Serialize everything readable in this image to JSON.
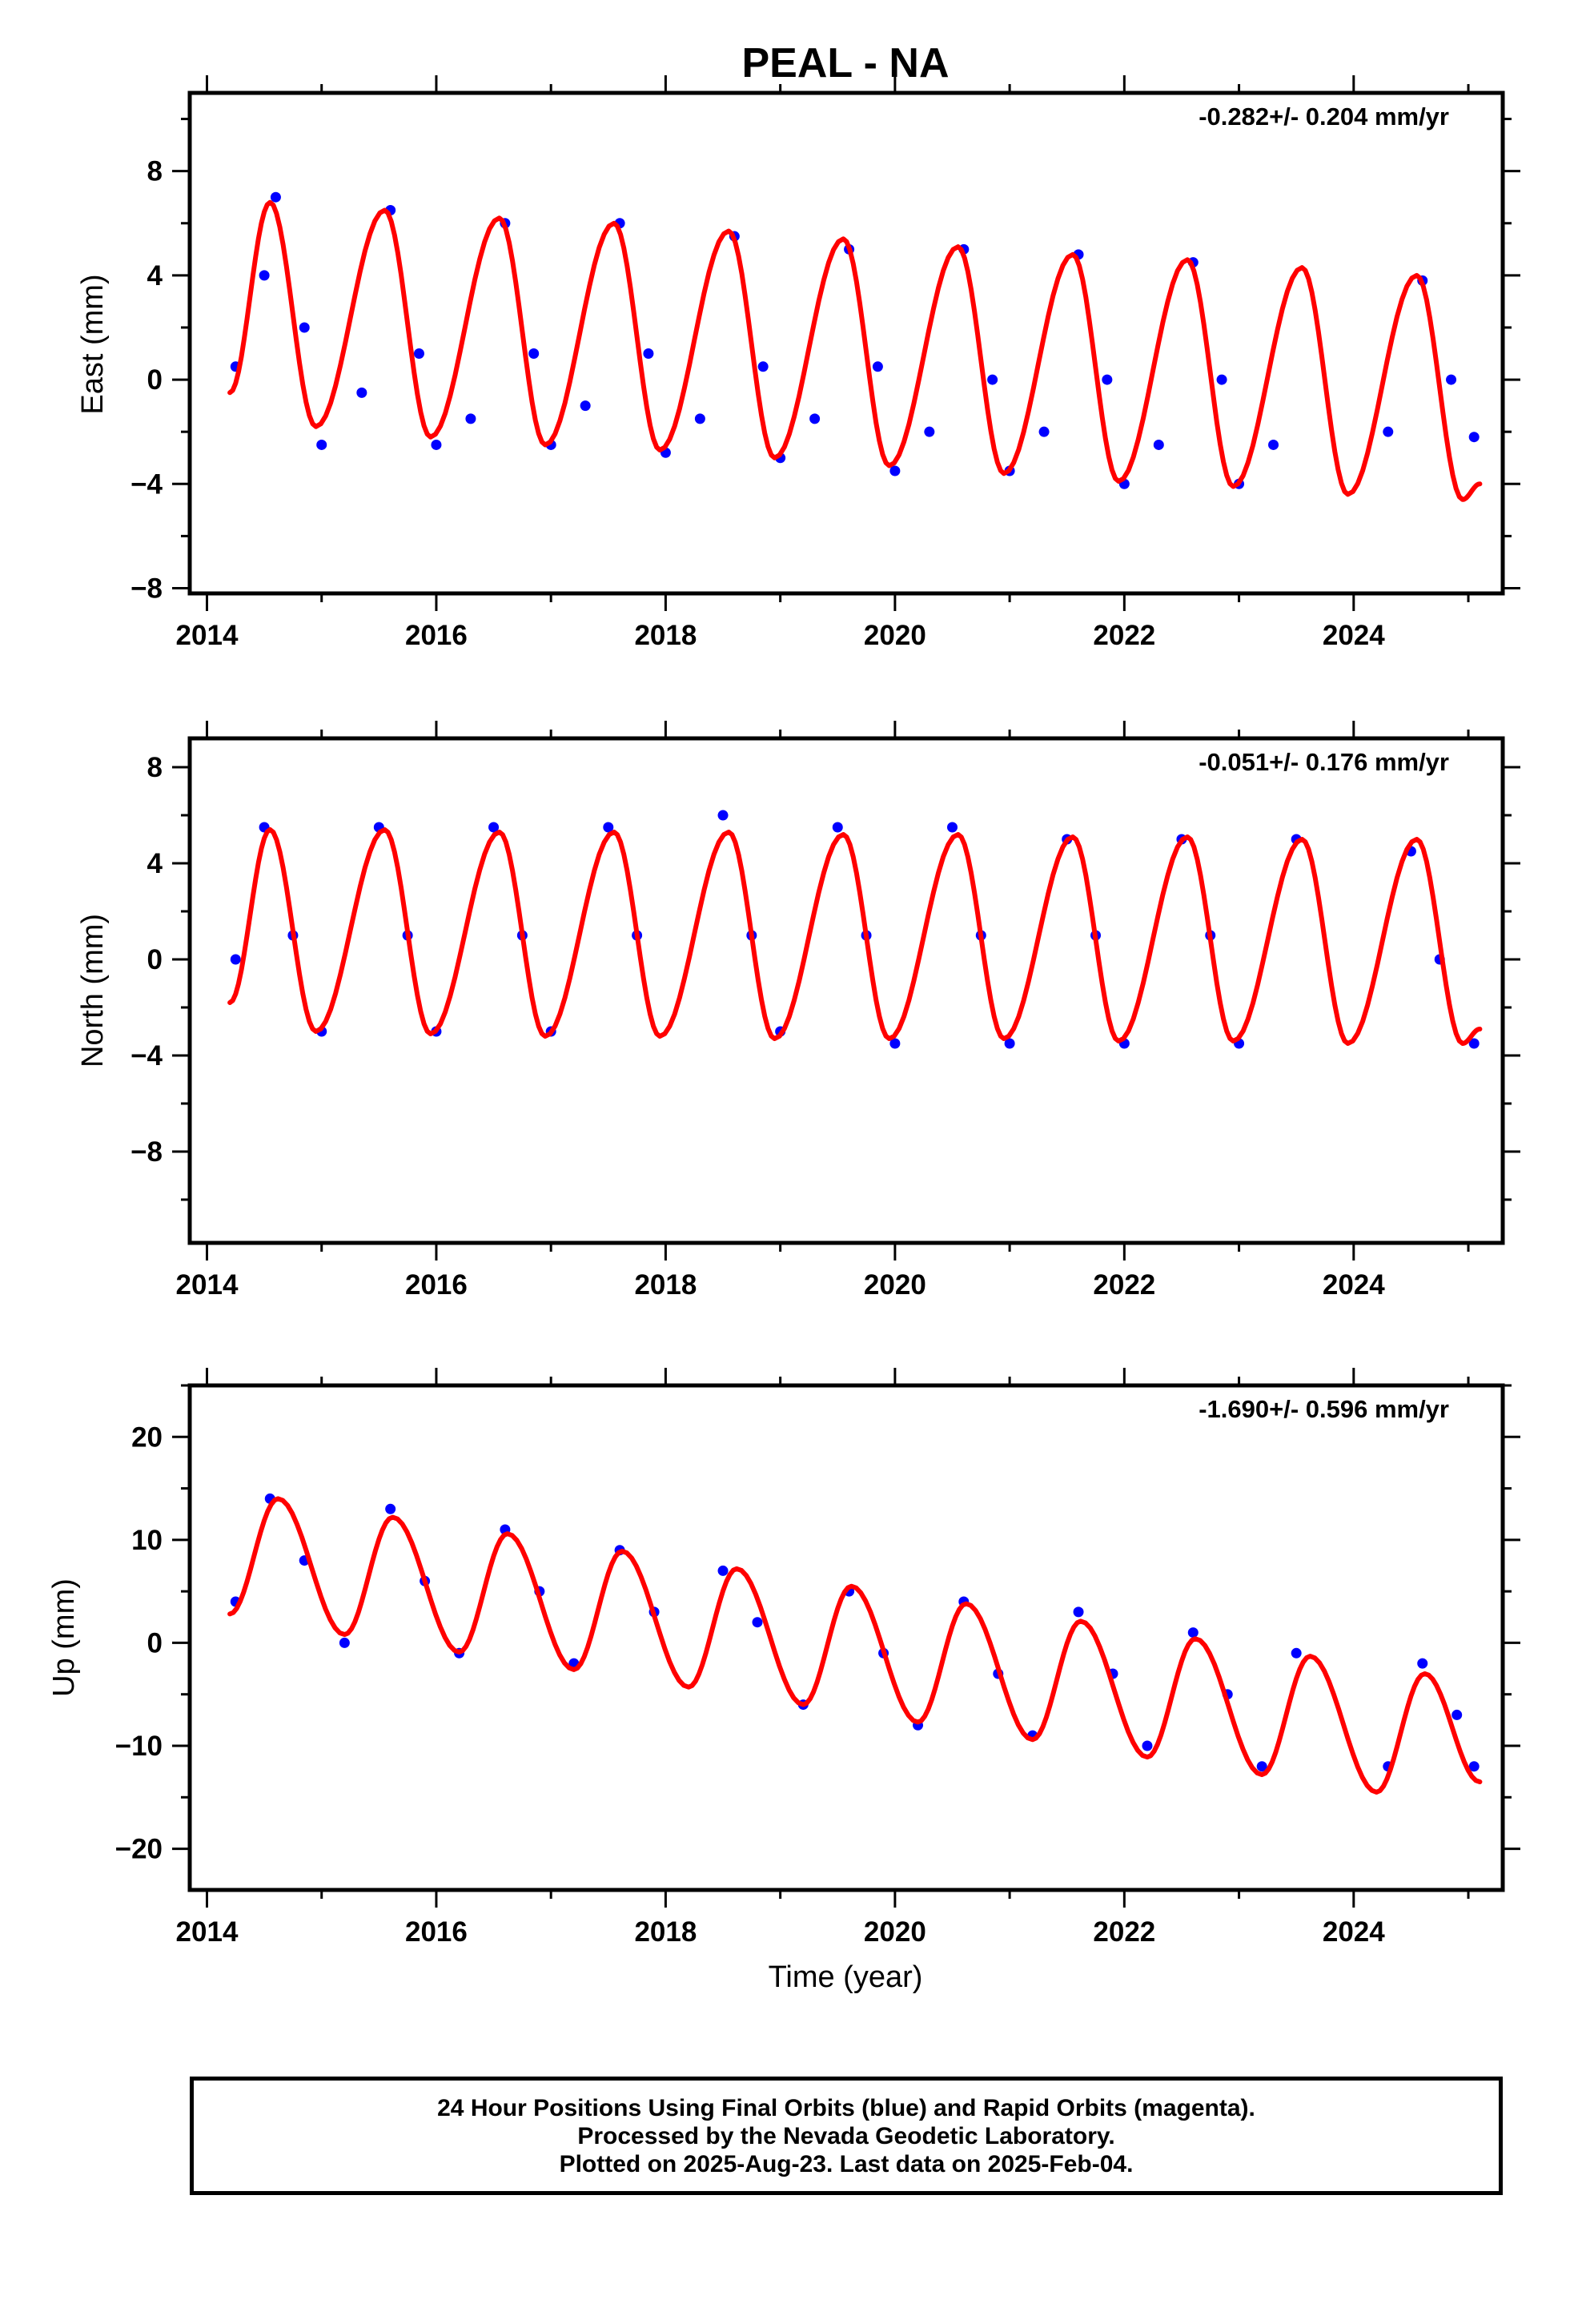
{
  "title": "PEAL - NA",
  "xlabel": "Time (year)",
  "footer": {
    "line1": "24 Hour Positions Using Final Orbits (blue) and Rapid Orbits (magenta).",
    "line2": "Processed by the Nevada Geodetic Laboratory.",
    "line3": "Plotted on 2025-Aug-23. Last data on 2025-Feb-04."
  },
  "colors": {
    "points": "#0000ff",
    "fit": "#ff0000",
    "axes": "#000000"
  },
  "chart_data": [
    {
      "type": "scatter",
      "ylabel": "East (mm)",
      "rate_label": "-0.282+/- 0.204 mm/yr",
      "xlim": [
        2013.85,
        2025.3
      ],
      "ylim": [
        -8.2,
        11.0
      ],
      "xticks": [
        2014,
        2016,
        2018,
        2020,
        2022,
        2024
      ],
      "yticks": [
        -8,
        -4,
        0,
        4,
        8
      ],
      "series": [
        {
          "x": [
            2014.25,
            2014.5,
            2014.6,
            2014.85,
            2015.0,
            2015.35,
            2015.6,
            2015.85,
            2016.0,
            2016.3,
            2016.6,
            2016.85,
            2017.0,
            2017.3,
            2017.6,
            2017.85,
            2018.0,
            2018.3,
            2018.6,
            2018.85,
            2019.0,
            2019.3,
            2019.6,
            2019.85,
            2020.0,
            2020.3,
            2020.6,
            2020.85,
            2021.0,
            2021.3,
            2021.6,
            2021.85,
            2022.0,
            2022.3,
            2022.6,
            2022.85,
            2023.0,
            2023.3,
            2024.3,
            2024.6,
            2024.85,
            2025.05
          ],
          "y": [
            0.5,
            4,
            7,
            2,
            -2.5,
            -0.5,
            6.5,
            1,
            -2.5,
            -1.5,
            6,
            1,
            -2.5,
            -1,
            6,
            1,
            -2.8,
            -1.5,
            5.5,
            0.5,
            -3,
            -1.5,
            5,
            0.5,
            -3.5,
            -2,
            5,
            0,
            -3.5,
            -2,
            4.8,
            0,
            -4,
            -2.5,
            4.5,
            0,
            -4,
            -2.5,
            -2,
            3.8,
            0,
            -2.2
          ]
        },
        {
          "x": [
            2014.2,
            2014.55,
            2014.95,
            2015.55,
            2015.95,
            2016.55,
            2016.95,
            2017.55,
            2017.95,
            2018.55,
            2018.95,
            2019.55,
            2019.95,
            2020.55,
            2020.95,
            2021.55,
            2021.95,
            2022.55,
            2022.95,
            2023.55,
            2023.95,
            2024.55,
            2024.95,
            2025.1
          ],
          "y": [
            -0.5,
            6.8,
            -1.8,
            6.5,
            -2.2,
            6.2,
            -2.5,
            6.0,
            -2.7,
            5.7,
            -3.0,
            5.4,
            -3.3,
            5.1,
            -3.6,
            4.8,
            -3.9,
            4.6,
            -4.1,
            4.3,
            -4.4,
            4.0,
            -4.6,
            -4.0
          ]
        }
      ]
    },
    {
      "type": "scatter",
      "ylabel": "North (mm)",
      "rate_label": "-0.051+/- 0.176 mm/yr",
      "xlim": [
        2013.85,
        2025.3
      ],
      "ylim": [
        -11.8,
        9.2
      ],
      "xticks": [
        2014,
        2016,
        2018,
        2020,
        2022,
        2024
      ],
      "yticks": [
        -8,
        -4,
        0,
        4,
        8
      ],
      "series": [
        {
          "x": [
            2014.25,
            2014.5,
            2014.75,
            2015.0,
            2015.5,
            2015.75,
            2016.0,
            2016.5,
            2016.75,
            2017.0,
            2017.5,
            2017.75,
            2018.5,
            2018.75,
            2019.0,
            2019.5,
            2019.75,
            2020.0,
            2020.5,
            2020.75,
            2021.0,
            2021.5,
            2021.75,
            2022.0,
            2022.5,
            2022.75,
            2023.0,
            2023.5,
            2024.5,
            2024.75,
            2025.05
          ],
          "y": [
            0,
            5.5,
            1,
            -3,
            5.5,
            1,
            -3,
            5.5,
            1,
            -3,
            5.5,
            1,
            6,
            1,
            -3,
            5.5,
            1,
            -3.5,
            5.5,
            1,
            -3.5,
            5,
            1,
            -3.5,
            5,
            1,
            -3.5,
            5,
            4.5,
            0,
            -3.5
          ]
        },
        {
          "x": [
            2014.2,
            2014.55,
            2014.95,
            2015.55,
            2015.95,
            2016.55,
            2016.95,
            2017.55,
            2017.95,
            2018.55,
            2018.95,
            2019.55,
            2019.95,
            2020.55,
            2020.95,
            2021.55,
            2021.95,
            2022.55,
            2022.95,
            2023.55,
            2023.95,
            2024.55,
            2024.95,
            2025.1
          ],
          "y": [
            -1.8,
            5.4,
            -3.0,
            5.4,
            -3.1,
            5.3,
            -3.2,
            5.3,
            -3.2,
            5.3,
            -3.3,
            5.2,
            -3.3,
            5.2,
            -3.3,
            5.1,
            -3.4,
            5.1,
            -3.4,
            5.0,
            -3.5,
            5.0,
            -3.5,
            -2.9
          ]
        }
      ]
    },
    {
      "type": "scatter",
      "ylabel": "Up (mm)",
      "rate_label": "-1.690+/- 0.596 mm/yr",
      "xlim": [
        2013.85,
        2025.3
      ],
      "ylim": [
        -24.0,
        25.0
      ],
      "xticks": [
        2014,
        2016,
        2018,
        2020,
        2022,
        2024
      ],
      "yticks": [
        -20,
        -10,
        0,
        10,
        20
      ],
      "series": [
        {
          "x": [
            2014.25,
            2014.55,
            2014.85,
            2015.2,
            2015.6,
            2015.9,
            2016.2,
            2016.6,
            2016.9,
            2017.2,
            2017.6,
            2017.9,
            2018.5,
            2018.8,
            2019.2,
            2019.6,
            2019.9,
            2020.2,
            2020.6,
            2020.9,
            2021.2,
            2021.6,
            2021.9,
            2022.2,
            2022.6,
            2022.9,
            2023.2,
            2023.5,
            2024.3,
            2024.6,
            2024.9,
            2025.05
          ],
          "y": [
            4,
            14,
            8,
            0,
            13,
            6,
            -1,
            11,
            5,
            -2,
            9,
            3,
            7,
            2,
            -6,
            5,
            -1,
            -8,
            4,
            -3,
            -9,
            3,
            -3,
            -10,
            1,
            -5,
            -12,
            -1,
            -12,
            -2,
            -7,
            -12
          ]
        },
        {
          "x": [
            2014.2,
            2014.62,
            2015.2,
            2015.62,
            2016.2,
            2016.62,
            2017.2,
            2017.62,
            2018.2,
            2018.62,
            2019.2,
            2019.62,
            2020.2,
            2020.62,
            2021.2,
            2021.62,
            2022.2,
            2022.62,
            2023.2,
            2023.62,
            2024.2,
            2024.62,
            2025.1
          ],
          "y": [
            2.8,
            14.0,
            0.8,
            12.2,
            -0.9,
            10.6,
            -2.6,
            8.9,
            -4.3,
            7.2,
            -6.0,
            5.5,
            -7.7,
            3.8,
            -9.4,
            2.1,
            -11.1,
            0.4,
            -12.8,
            -1.3,
            -14.5,
            -3.0,
            -13.5
          ]
        }
      ]
    }
  ]
}
